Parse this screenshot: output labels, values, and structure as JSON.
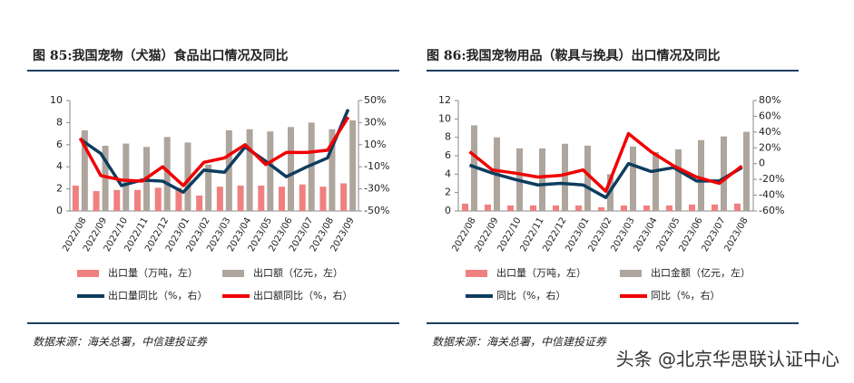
{
  "chart_data": [
    {
      "type": "combo",
      "title": "图 85:我国宠物（犬猫）食品出口情况及同比",
      "categories": [
        "2022/08",
        "2022/09",
        "2022/10",
        "2022/11",
        "2022/12",
        "2023/01",
        "2023/02",
        "2023/03",
        "2023/04",
        "2023/05",
        "2023/06",
        "2023/07",
        "2023/08",
        "2023/09"
      ],
      "ylim": [
        0,
        10
      ],
      "yticks": [
        0,
        2,
        4,
        6,
        8,
        10
      ],
      "y2lim": [
        -50,
        50
      ],
      "y2ticks": [
        {
          "value": -50,
          "label": "-50%"
        },
        {
          "value": -30,
          "label": "-30%"
        },
        {
          "value": -10,
          "label": "-10%"
        },
        {
          "value": 10,
          "label": "10%"
        },
        {
          "value": 30,
          "label": "30%"
        },
        {
          "value": 50,
          "label": "50%"
        }
      ],
      "series": [
        {
          "name": "出口量（万吨，左）",
          "kind": "bar",
          "color": "#f08080",
          "values": [
            2.3,
            1.8,
            1.9,
            1.9,
            2.1,
            2.1,
            1.4,
            2.2,
            2.3,
            2.3,
            2.2,
            2.4,
            2.2,
            2.5
          ]
        },
        {
          "name": "出口额（亿元，左）",
          "kind": "bar",
          "color": "#aea59d",
          "values": [
            7.3,
            5.9,
            6.1,
            5.8,
            6.7,
            6.2,
            4.2,
            7.3,
            7.4,
            7.2,
            7.6,
            8.0,
            7.4,
            8.2
          ]
        },
        {
          "name": "出口量同比（%，右）",
          "kind": "line",
          "axis": "y2",
          "color": "#0d3d5e",
          "values": [
            15,
            2,
            -27,
            -22,
            -23,
            -33,
            -13,
            -15,
            8,
            -5,
            -19,
            -10,
            -2,
            42
          ]
        },
        {
          "name": "出口额同比（%，右）",
          "kind": "line",
          "axis": "y2",
          "color": "#f00000",
          "values": [
            16,
            -18,
            -22,
            -23,
            -10,
            -27,
            -6,
            -2,
            10,
            -8,
            3,
            3,
            5,
            35
          ]
        }
      ],
      "source": "数据来源：海关总署，中信建投证券"
    },
    {
      "type": "combo",
      "title": "图 86:我国宠物用品（鞍具与挽具）出口情况及同比",
      "categories": [
        "2022/08",
        "2022/09",
        "2022/10",
        "2022/11",
        "2022/12",
        "2023/01",
        "2023/02",
        "2023/03",
        "2023/04",
        "2023/05",
        "2023/06",
        "2023/07",
        "2023/08"
      ],
      "ylim": [
        0,
        12
      ],
      "yticks": [
        0,
        2,
        4,
        6,
        8,
        10,
        12
      ],
      "y2lim": [
        -60,
        80
      ],
      "y2ticks": [
        {
          "value": -60,
          "label": "-60%"
        },
        {
          "value": -40,
          "label": "-40%"
        },
        {
          "value": -20,
          "label": "-20%"
        },
        0,
        {
          "value": 20,
          "label": "20%"
        },
        {
          "value": 40,
          "label": "40%"
        },
        {
          "value": 60,
          "label": "60%"
        },
        {
          "value": 80,
          "label": "80%"
        }
      ],
      "series": [
        {
          "name": "出口量（万吨，左）",
          "kind": "bar",
          "color": "#f08080",
          "values": [
            0.8,
            0.7,
            0.6,
            0.6,
            0.6,
            0.6,
            0.4,
            0.6,
            0.6,
            0.6,
            0.7,
            0.7,
            0.8
          ]
        },
        {
          "name": "出口金额（亿元，左）",
          "kind": "bar",
          "color": "#aea59d",
          "values": [
            9.3,
            8.0,
            6.8,
            6.8,
            7.3,
            7.1,
            4.0,
            7.0,
            6.4,
            6.7,
            7.7,
            8.1,
            8.6
          ]
        },
        {
          "name": "同比（%，右）",
          "kind": "line",
          "axis": "y2",
          "color": "#0d3d5e",
          "values": [
            -2,
            -12,
            -20,
            -27,
            -25,
            -27,
            -43,
            0,
            -10,
            -5,
            -22,
            -22,
            -5
          ]
        },
        {
          "name": "同比（%，右）",
          "kind": "line",
          "axis": "y2",
          "color": "#f00000",
          "values": [
            15,
            -8,
            -12,
            -17,
            -15,
            -8,
            -35,
            38,
            15,
            -3,
            -17,
            -25,
            -3
          ]
        }
      ],
      "source": "数据来源：海关总署，中信建投证券"
    }
  ],
  "watermark": "头条 @北京华思联认证中心"
}
